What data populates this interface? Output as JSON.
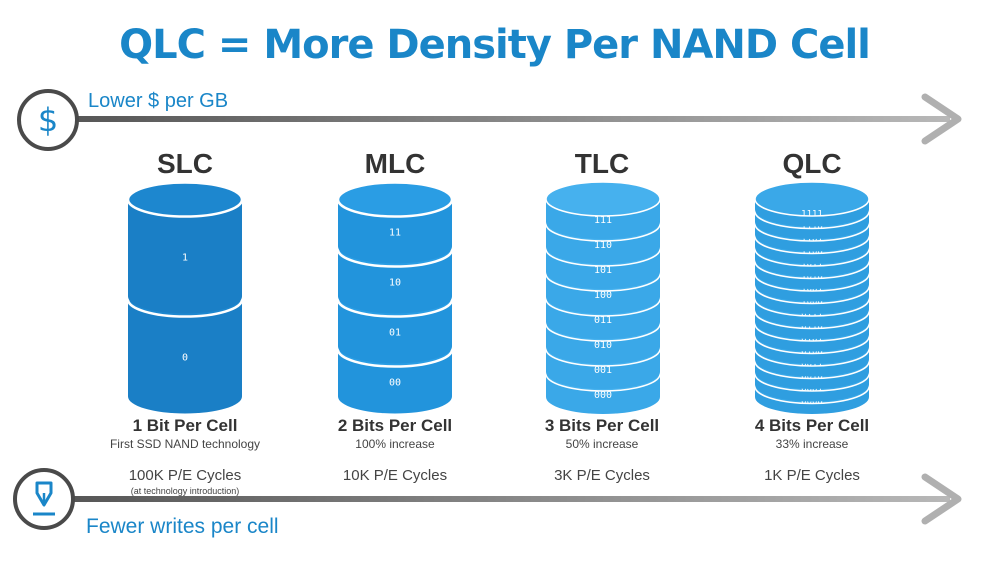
{
  "title": "QLC = More Density Per NAND Cell",
  "top_axis": {
    "label": "Lower $ per GB",
    "icon": "dollar-icon"
  },
  "bottom_axis": {
    "label": "Fewer writes per cell",
    "icon": "pen-icon"
  },
  "colors": {
    "accent": "#1a86c8",
    "cell_dark": "#1679c0",
    "cell_light": "#2f9ee0",
    "tlc": "#3aa8e8",
    "arrow": "#6e6e6e"
  },
  "columns": [
    {
      "name": "SLC",
      "bits": "1 Bit Per Cell",
      "desc": "First SSD NAND technology",
      "cycles": "100K P/E Cycles",
      "note": "(at technology introduction)",
      "labels": [
        "1",
        "0"
      ]
    },
    {
      "name": "MLC",
      "bits": "2 Bits Per Cell",
      "desc": "100% increase",
      "cycles": "10K P/E Cycles",
      "note": "",
      "labels": [
        "11",
        "10",
        "01",
        "00"
      ]
    },
    {
      "name": "TLC",
      "bits": "3 Bits Per Cell",
      "desc": "50% increase",
      "cycles": "3K P/E Cycles",
      "note": "",
      "labels": [
        "111",
        "110",
        "101",
        "100",
        "011",
        "010",
        "001",
        "000"
      ]
    },
    {
      "name": "QLC",
      "bits": "4 Bits Per Cell",
      "desc": "33% increase",
      "cycles": "1K P/E Cycles",
      "note": "",
      "labels": [
        "1111",
        "1110",
        "1101",
        "1100",
        "1011",
        "1010",
        "1001",
        "1000",
        "0111",
        "0110",
        "0101",
        "0100",
        "0011",
        "0010",
        "0001",
        "0000"
      ]
    }
  ]
}
